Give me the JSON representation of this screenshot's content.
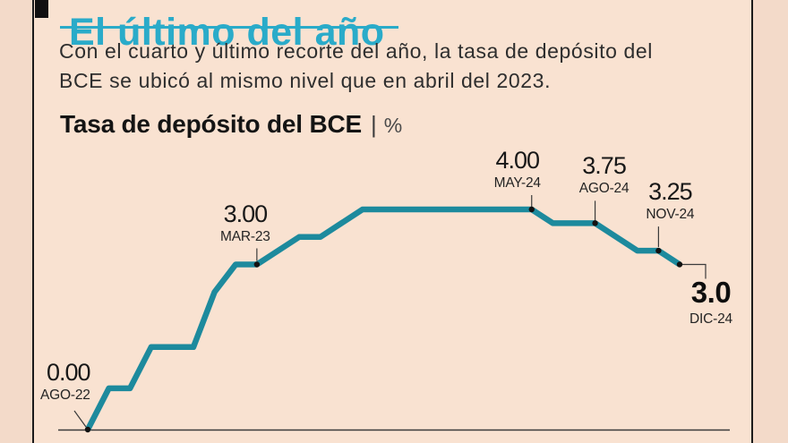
{
  "header": {
    "bullet_icon": "square-bullet-icon",
    "title": "El último del año"
  },
  "intro": {
    "line1": "Con el cuarto y último recorte del año, la tasa de depósito del",
    "line2": "BCE se ubicó al mismo nivel que en abril del 2023."
  },
  "chart_header": {
    "title": "Tasa de depósito del BCE",
    "divider": "|",
    "unit": "%"
  },
  "colors": {
    "background": "#f9e2d1",
    "outer_strip": "#f3dac9",
    "frame_black": "#1b1b1b",
    "accent_teal": "#2aabc9",
    "line_teal": "#1d8a9d",
    "axis_gray": "#3b3b3b",
    "marker_black": "#121212"
  },
  "chart_data": {
    "type": "line",
    "style": "step",
    "title": "Tasa de depósito del BCE",
    "unit": "%",
    "x_axis": "Meses, AGO-22 a DIC-24 (índice 0-28)",
    "ylim": [
      0,
      4.0
    ],
    "grid": false,
    "points": [
      [
        0,
        0.0
      ],
      [
        1,
        0.75
      ],
      [
        2,
        0.75
      ],
      [
        3,
        1.5
      ],
      [
        5,
        1.5
      ],
      [
        6,
        2.5
      ],
      [
        7,
        3.0
      ],
      [
        8,
        3.0
      ],
      [
        10,
        3.5
      ],
      [
        11,
        3.5
      ],
      [
        13,
        4.0
      ],
      [
        21,
        4.0
      ],
      [
        22,
        3.75
      ],
      [
        24,
        3.75
      ],
      [
        26,
        3.25
      ],
      [
        27,
        3.25
      ],
      [
        28,
        3.0
      ]
    ],
    "annotations": [
      {
        "value": "0.00",
        "date": "AGO-22",
        "m": 0,
        "rate": 0.0
      },
      {
        "value": "3.00",
        "date": "MAR-23",
        "m": 8,
        "rate": 3.0
      },
      {
        "value": "4.00",
        "date": "MAY-24",
        "m": 21,
        "rate": 4.0
      },
      {
        "value": "3.75",
        "date": "AGO-24",
        "m": 24,
        "rate": 3.75
      },
      {
        "value": "3.25",
        "date": "NOV-24",
        "m": 27,
        "rate": 3.25
      },
      {
        "value": "3.0",
        "date": "DIC-24",
        "m": 28,
        "rate": 3.0,
        "emphasis": true
      }
    ]
  }
}
